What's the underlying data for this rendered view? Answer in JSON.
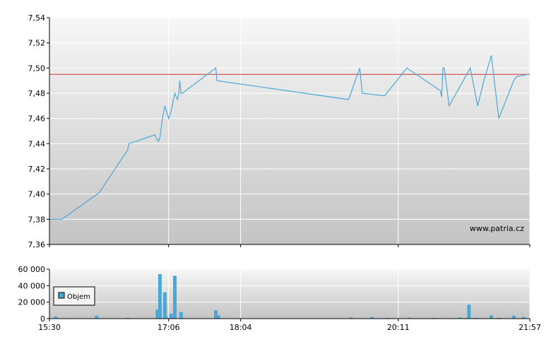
{
  "chart_data": [
    {
      "type": "line",
      "ylim": [
        7.36,
        7.54
      ],
      "y_ticks": [
        "7,54",
        "7,52",
        "7,50",
        "7,48",
        "7,46",
        "7,44",
        "7,42",
        "7,40",
        "7,38",
        "7,36"
      ],
      "y_tick_values": [
        7.54,
        7.52,
        7.5,
        7.48,
        7.46,
        7.44,
        7.42,
        7.4,
        7.38,
        7.36
      ],
      "x_time_range": [
        "15:30",
        "21:57"
      ],
      "reference_line": 7.495,
      "watermark": "www.patria.cz",
      "grid": true,
      "colors": {
        "line": "#4aa8d8",
        "reference": "#cc3333",
        "bg_top": "#f7f7f7",
        "bg_bottom": "#c4c4c4"
      },
      "series": [
        {
          "x": [
            "15:30",
            "15:40",
            "16:10",
            "16:33",
            "16:34",
            "16:55",
            "16:57",
            "16:58",
            "16:59",
            "17:00",
            "17:01",
            "17:02",
            "17:03",
            "17:06",
            "17:08",
            "17:11",
            "17:13",
            "17:14",
            "17:15",
            "17:16",
            "17:17",
            "17:44",
            "17:45",
            "19:31",
            "19:40",
            "19:42",
            "20:00",
            "20:18",
            "20:45",
            "20:46",
            "20:47",
            "20:48",
            "20:52",
            "21:09",
            "21:15",
            "21:20",
            "21:26",
            "21:32",
            "21:44",
            "21:46",
            "21:55",
            "21:57"
          ],
          "y": [
            7.38,
            7.38,
            7.401,
            7.435,
            7.44,
            7.447,
            7.443,
            7.442,
            7.445,
            7.452,
            7.46,
            7.465,
            7.47,
            7.46,
            7.466,
            7.48,
            7.475,
            7.478,
            7.49,
            7.48,
            7.48,
            7.5,
            7.49,
            7.475,
            7.5,
            7.48,
            7.478,
            7.5,
            7.482,
            7.477,
            7.5,
            7.5,
            7.47,
            7.5,
            7.47,
            7.49,
            7.51,
            7.46,
            7.49,
            7.493,
            7.495,
            7.495
          ]
        }
      ]
    },
    {
      "type": "bar",
      "ylim": [
        0,
        60000
      ],
      "y_ticks": [
        "60 000",
        "40 000",
        "20 000",
        "0"
      ],
      "y_tick_values": [
        60000,
        40000,
        20000,
        0
      ],
      "x_ticks": [
        "15:30",
        "17:06",
        "18:04",
        "20:11",
        "21:57"
      ],
      "x_tick_times": [
        "15:30",
        "17:06",
        "18:04",
        "20:11",
        "21:57"
      ],
      "legend": {
        "label": "Objem",
        "position": "left"
      },
      "grid": true,
      "colors": {
        "bar": "#4aa8d8",
        "bg_top": "#f7f7f7",
        "bg_bottom": "#c4c4c4"
      },
      "series": [
        {
          "name": "Objem",
          "x": [
            "15:35",
            "16:08",
            "16:33",
            "16:57",
            "16:59",
            "17:03",
            "17:04",
            "17:08",
            "17:11",
            "17:16",
            "17:44",
            "17:46",
            "19:33",
            "19:50",
            "20:02",
            "20:20",
            "20:40",
            "21:01",
            "21:08",
            "21:14",
            "21:26",
            "21:32",
            "21:44",
            "21:52"
          ],
          "values": [
            2500,
            3500,
            1000,
            11000,
            54000,
            32000,
            2000,
            6000,
            52000,
            8000,
            10000,
            4000,
            1500,
            2000,
            1000,
            1200,
            1000,
            1500,
            17000,
            1000,
            4000,
            1000,
            3500,
            2000
          ]
        }
      ]
    }
  ]
}
